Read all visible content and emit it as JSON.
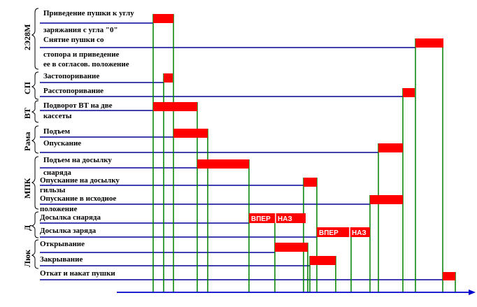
{
  "groups": {
    "g1": "2Э28М",
    "g2": "СП",
    "g3": "ВТ",
    "g4": "Рама",
    "g5": "МПК",
    "g6": "Д",
    "g7": "Люк"
  },
  "labels": {
    "l1": "Приведение пушки к углу",
    "l2": "заряжания с угла \"0\"",
    "l3": "Снятие пушки со",
    "l4": "стопора и приведение",
    "l5": "ее в согласов. положение",
    "l6": "Застопоривание",
    "l7": "Расстопоривание",
    "l8": "Подворот ВТ на две",
    "l9": "кассеты",
    "l10": "Подъем",
    "l11": "Опускание",
    "l12": "Подъем на досылку",
    "l13": "снаряда",
    "l14": "Опускание на досылку",
    "l15": "гильзы",
    "l16": "Опускание в исходное",
    "l17": "положение",
    "l18": "Досылка снаряда",
    "l19": "Досылка заряда",
    "l20": "Открывание",
    "l21": "Закрывание",
    "l22": "Откат и накат пушки"
  },
  "bar_text": {
    "b1a": "ВПЕР",
    "b1b": "НАЗ",
    "b2a": "ВПЕР",
    "b2b": "НАЗ"
  },
  "colors": {
    "bar": "#ff0000",
    "row_line": "#000099",
    "connector": "#008000",
    "axis": "#0000cc"
  }
}
